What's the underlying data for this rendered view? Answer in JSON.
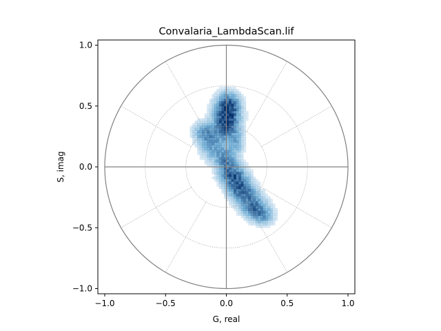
{
  "chart_data": {
    "type": "heatmap",
    "title": "Convalaria_LambdaScan.lif",
    "xlabel": "G, real",
    "ylabel": "S, imag",
    "xlim": [
      -1.04,
      1.04
    ],
    "ylim": [
      -1.04,
      1.04
    ],
    "xticks": [
      -1.0,
      -0.5,
      0.0,
      0.5,
      1.0
    ],
    "xtick_labels": [
      "−1.0",
      "−0.5",
      "0.0",
      "0.5",
      "1.0"
    ],
    "yticks": [
      -1.0,
      -0.5,
      0.0,
      0.5,
      1.0
    ],
    "ytick_labels": [
      "−1.0",
      "−0.5",
      "0.0",
      "0.5",
      "1.0"
    ],
    "grid": false,
    "polar_grid": {
      "unit_circle_radius": 1.0,
      "dotted_circle_radii": [
        0.333,
        0.667
      ],
      "dotted_spoke_angles_deg": [
        30,
        60,
        120,
        150,
        210,
        240,
        300,
        330
      ],
      "colors": {
        "unit_circle": "#808080",
        "axes_lines": "#808080",
        "dotted": "#9a9a9a"
      }
    },
    "histogram": {
      "colormap": "Blues",
      "color_low": "#deebf7",
      "color_high": "#08306b",
      "bin_size": 0.02,
      "clusters": [
        {
          "center": [
            0.0,
            0.38
          ],
          "sigma": [
            0.07,
            0.11
          ],
          "weight": 1.0
        },
        {
          "center": [
            0.02,
            0.52
          ],
          "sigma": [
            0.06,
            0.06
          ],
          "weight": 0.55
        },
        {
          "center": [
            -0.18,
            0.28
          ],
          "sigma": [
            0.06,
            0.06
          ],
          "weight": 0.5
        },
        {
          "center": [
            -0.12,
            0.16
          ],
          "sigma": [
            0.06,
            0.07
          ],
          "weight": 0.4
        },
        {
          "center": [
            0.0,
            0.05
          ],
          "sigma": [
            0.06,
            0.07
          ],
          "weight": 0.6
        },
        {
          "center": [
            0.06,
            -0.08
          ],
          "sigma": [
            0.07,
            0.06
          ],
          "weight": 0.75
        },
        {
          "center": [
            0.13,
            -0.2
          ],
          "sigma": [
            0.07,
            0.06
          ],
          "weight": 0.75
        },
        {
          "center": [
            0.22,
            -0.32
          ],
          "sigma": [
            0.07,
            0.06
          ],
          "weight": 0.65
        },
        {
          "center": [
            0.3,
            -0.4
          ],
          "sigma": [
            0.06,
            0.05
          ],
          "weight": 0.45
        },
        {
          "center": [
            0.09,
            0.2
          ],
          "sigma": [
            0.04,
            0.06
          ],
          "weight": 0.25
        }
      ]
    }
  }
}
